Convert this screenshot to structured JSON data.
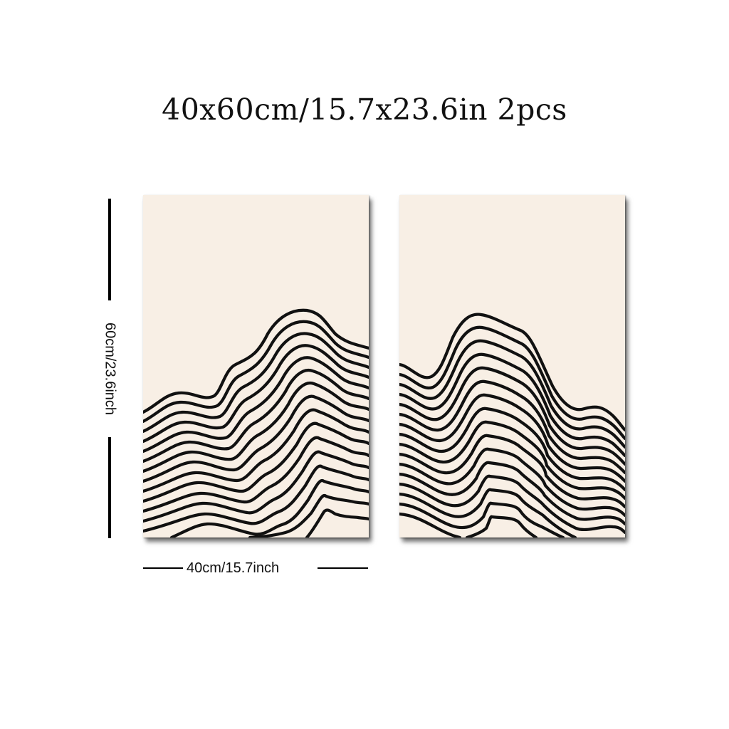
{
  "title": "40x60cm/15.7x23.6in 2pcs",
  "dimensions": {
    "height_label": "60cm/23.6inch",
    "width_label": "40cm/15.7inch"
  },
  "panels": [
    {
      "artwork": "line-art-mountain"
    },
    {
      "artwork": "line-art-mountain"
    }
  ],
  "colors": {
    "canvas": "#f8efe5",
    "ink": "#111111"
  }
}
